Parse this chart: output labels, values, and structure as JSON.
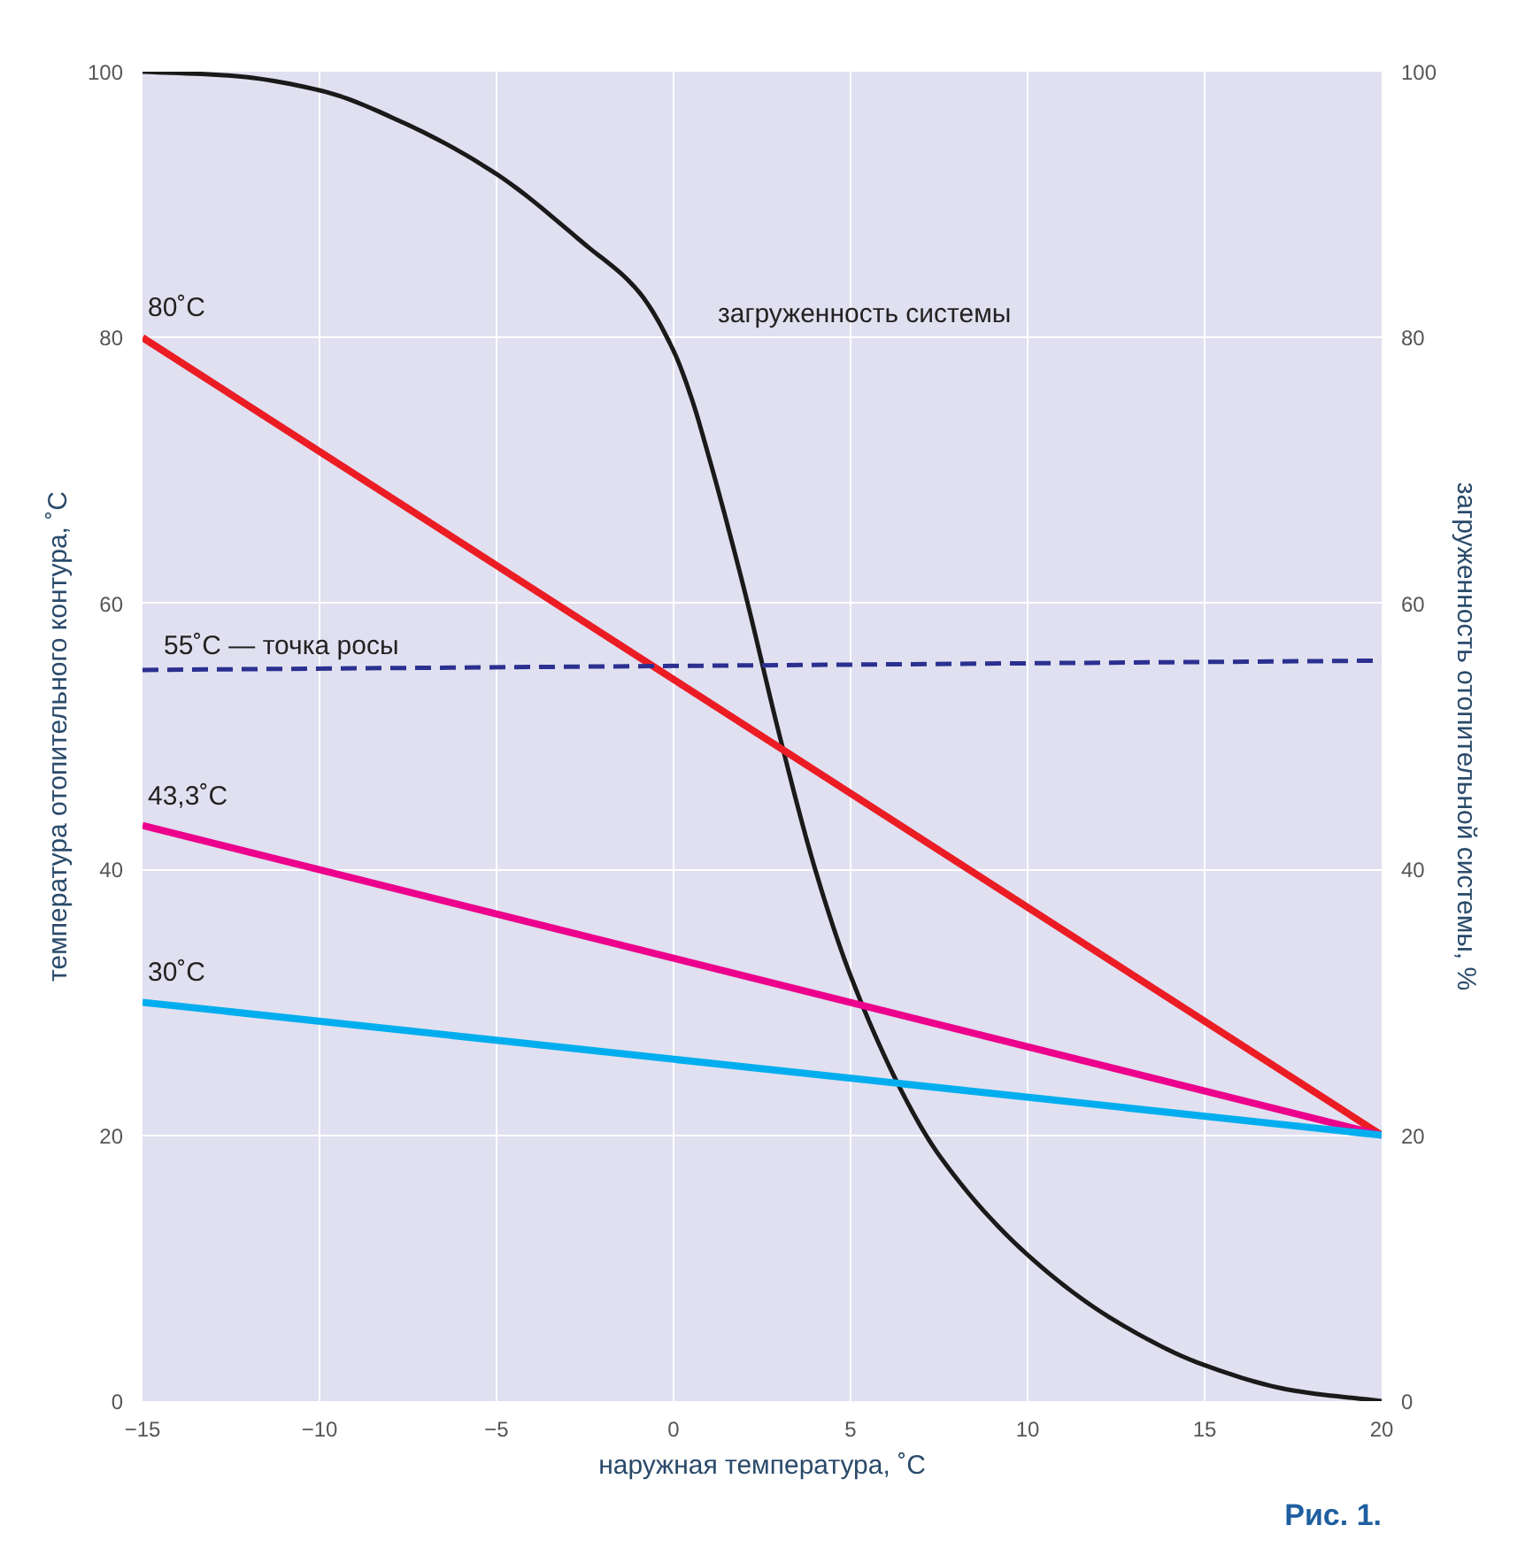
{
  "chart_data": {
    "type": "line",
    "xlabel": "наружная температура, ˚С",
    "ylabel": "температура отопительного контура, ˚С",
    "y2label": "загруженность отопительной системы, %",
    "xlim": [
      -15,
      20
    ],
    "xticks": [
      -15,
      -10,
      -5,
      0,
      5,
      10,
      15,
      20
    ],
    "ylim": [
      0,
      100
    ],
    "yticks": [
      0,
      20,
      40,
      60,
      80,
      100
    ],
    "y2lim": [
      0,
      100
    ],
    "y2ticks": [
      0,
      20,
      40,
      60,
      80,
      100
    ],
    "grid": true,
    "series": [
      {
        "name": "загруженность системы",
        "color": "#1a1a1a",
        "axis": "y2",
        "x": [
          -15,
          -12.5,
          -10,
          -7.5,
          -5,
          -2.5,
          -1,
          0,
          0.5,
          1,
          2,
          3,
          4,
          5,
          6.6,
          7.5,
          10,
          12.5,
          15,
          17.5,
          20
        ],
        "values": [
          100,
          99.7,
          98.6,
          96,
          92.3,
          87,
          83.5,
          79,
          75.5,
          71,
          61,
          50,
          40,
          32,
          22.5,
          18.5,
          11,
          6,
          2.7,
          0.8,
          0
        ]
      },
      {
        "name": "80˚C",
        "color": "#ec1c24",
        "x": [
          -15,
          20
        ],
        "values": [
          80,
          20
        ]
      },
      {
        "name": "55˚C — точка росы",
        "color": "#2b3090",
        "line_style": "dashed",
        "x": [
          -15,
          20
        ],
        "values": [
          55,
          55.7
        ]
      },
      {
        "name": "43,3˚C",
        "color": "#ec008c",
        "x": [
          -15,
          20
        ],
        "values": [
          43.3,
          20
        ]
      },
      {
        "name": "30˚C",
        "color": "#00aeef",
        "x": [
          -15,
          20
        ],
        "values": [
          30,
          20
        ]
      }
    ],
    "annotations": [
      "Рис. 1."
    ]
  }
}
